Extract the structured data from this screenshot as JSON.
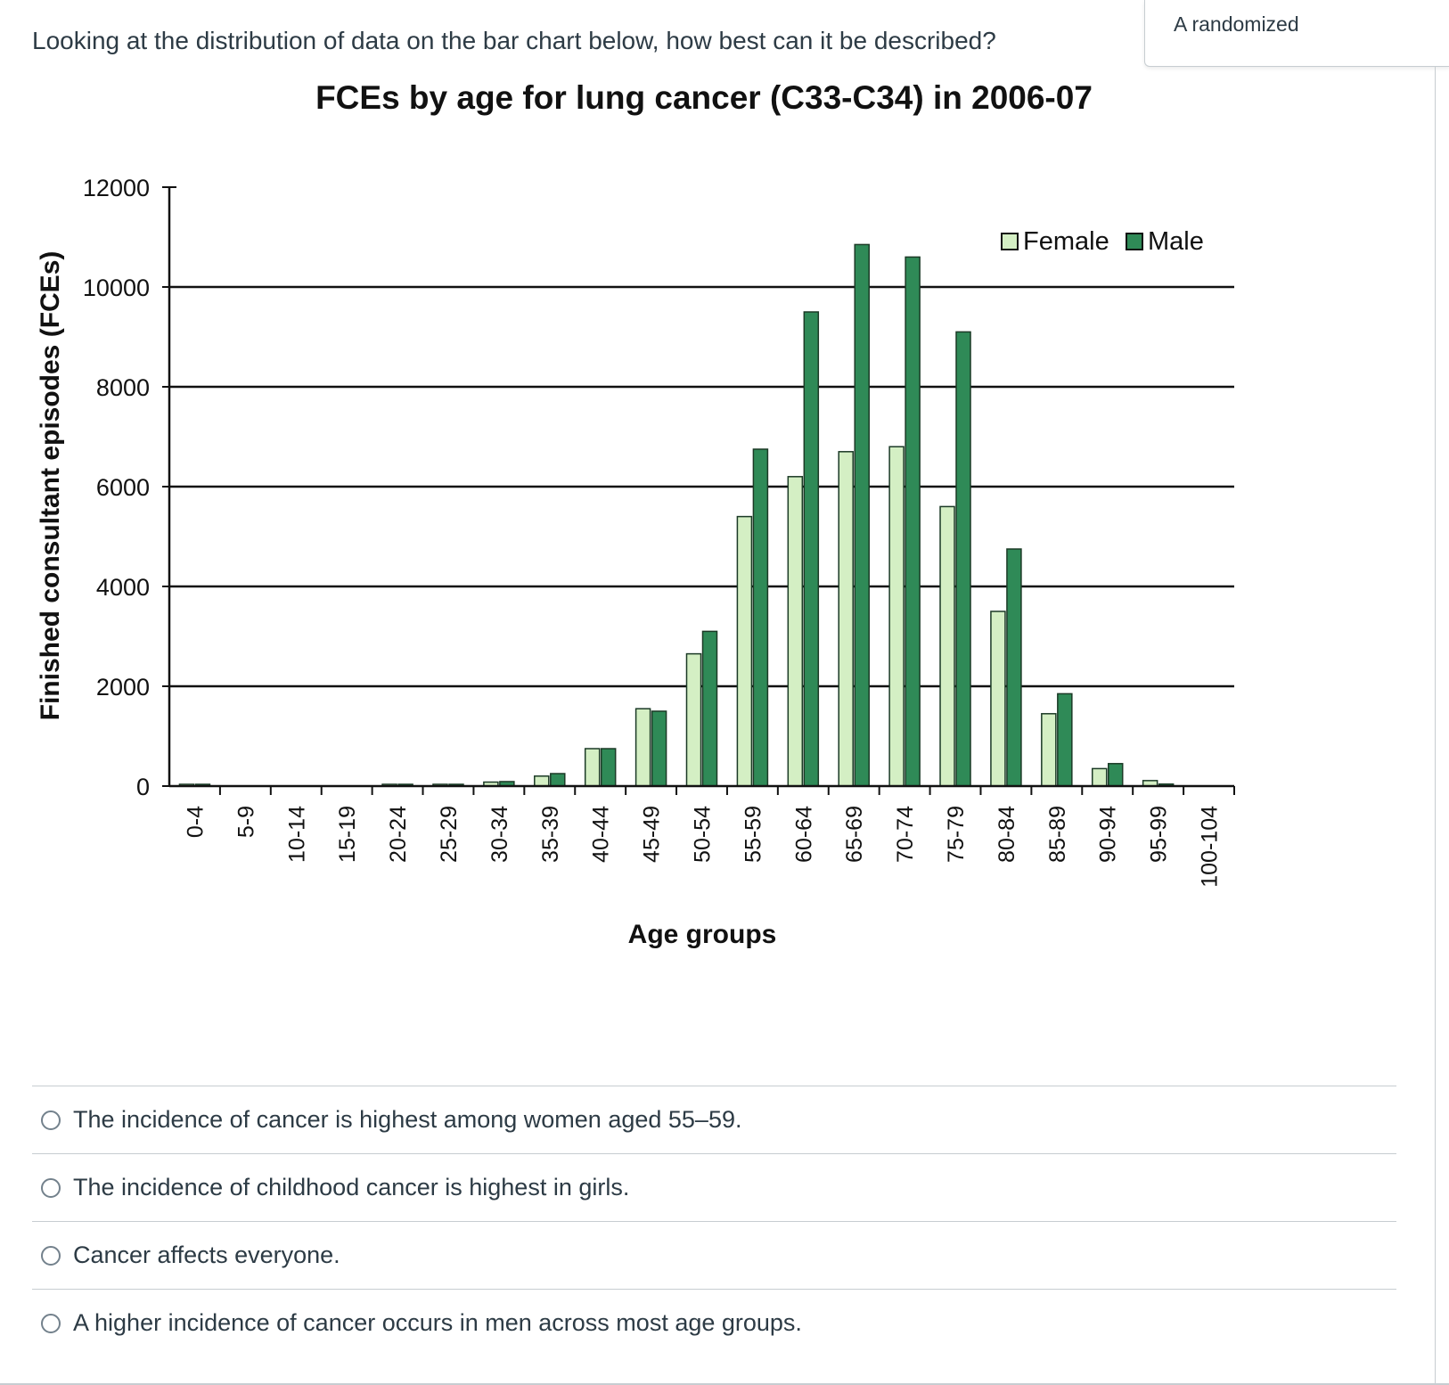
{
  "question": {
    "text": "Looking at the distribution of data on the bar chart below, how best can it be described?",
    "tag": "A randomized"
  },
  "chart_data": {
    "type": "bar",
    "title": "FCEs by age for lung cancer (C33-C34) in 2006-07",
    "xlabel": "Age groups",
    "ylabel": "Finished consultant episodes (FCEs)",
    "ylim": [
      0,
      12000
    ],
    "yticks": [
      "0",
      "2000",
      "4000",
      "6000",
      "8000",
      "10000",
      "12000"
    ],
    "grid": true,
    "legend_position": "top-right",
    "categories": [
      "0-4",
      "5-9",
      "10-14",
      "15-19",
      "20-24",
      "25-29",
      "30-34",
      "35-39",
      "40-44",
      "45-49",
      "50-54",
      "55-59",
      "60-64",
      "65-69",
      "70-74",
      "75-79",
      "80-84",
      "85-89",
      "90-94",
      "95-99",
      "100-104"
    ],
    "series": [
      {
        "name": "Female",
        "color": "#d4efc4",
        "values": [
          20,
          0,
          0,
          0,
          10,
          20,
          80,
          200,
          750,
          1550,
          2650,
          5400,
          6200,
          6700,
          6800,
          5600,
          3500,
          1450,
          350,
          110,
          0
        ]
      },
      {
        "name": "Male",
        "color": "#2f8a57",
        "values": [
          10,
          0,
          0,
          0,
          20,
          20,
          90,
          250,
          750,
          1500,
          3100,
          6750,
          9500,
          10850,
          10600,
          9100,
          4750,
          1850,
          450,
          40,
          0
        ]
      }
    ]
  },
  "answers": [
    {
      "label": "The incidence of cancer is highest among women aged 55–59."
    },
    {
      "label": "The incidence of childhood cancer is highest in girls."
    },
    {
      "label": "Cancer affects everyone."
    },
    {
      "label": "A higher incidence of cancer occurs in men across most age groups."
    }
  ]
}
